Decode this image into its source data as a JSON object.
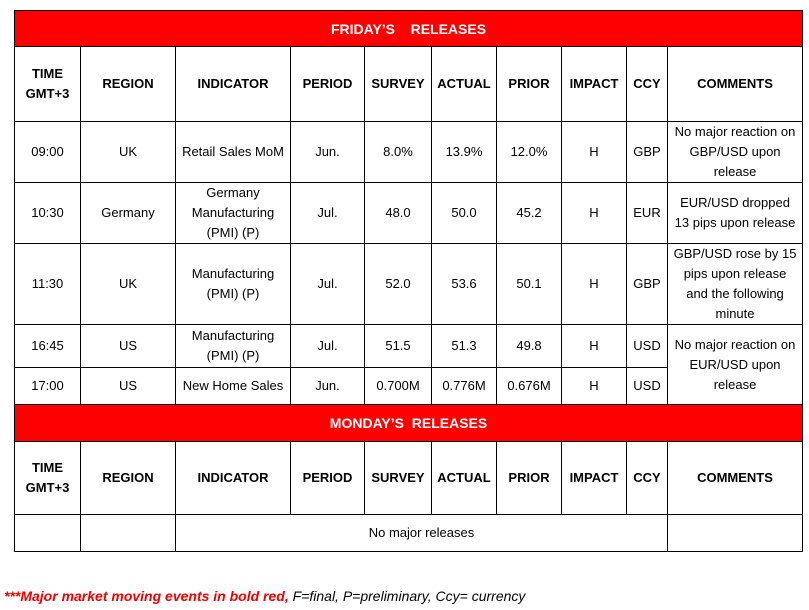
{
  "friday": {
    "title": "FRIDAY’S    RELEASES",
    "columns": [
      "TIME GMT+3",
      "REGION",
      "INDICATOR",
      "PERIOD",
      "SURVEY",
      "ACTUAL",
      "PRIOR",
      "IMPACT",
      "CCY",
      "COMMENTS"
    ],
    "rows": [
      [
        "09:00",
        "UK",
        "Retail Sales MoM",
        "Jun.",
        "8.0%",
        "13.9%",
        "12.0%",
        "H",
        "GBP",
        "No major reaction on GBP/USD upon release"
      ],
      [
        "10:30",
        "Germany",
        "Germany Manufacturing (PMI) (P)",
        "Jul.",
        "48.0",
        "50.0",
        "45.2",
        "H",
        "EUR",
        "EUR/USD dropped 13 pips upon release"
      ],
      [
        "11:30",
        "UK",
        "Manufacturing (PMI) (P)",
        "Jul.",
        "52.0",
        "53.6",
        "50.1",
        "H",
        "GBP",
        "GBP/USD rose by 15 pips upon release and the following minute"
      ],
      [
        "16:45",
        "US",
        "Manufacturing (PMI) (P)",
        "Jul.",
        "51.5",
        "51.3",
        "49.8",
        "H",
        "USD",
        "No major reaction on EUR/USD upon release"
      ],
      [
        "17:00",
        "US",
        "New Home Sales",
        "Jun.",
        "0.700M",
        "0.776M",
        "0.676M",
        "H",
        "USD"
      ]
    ]
  },
  "monday": {
    "title": "MONDAY’S  RELEASES",
    "columns": [
      "TIME GMT+3",
      "REGION",
      "INDICATOR",
      "PERIOD",
      "SURVEY",
      "ACTUAL",
      "PRIOR",
      "IMPACT",
      "CCY",
      "COMMENTS"
    ],
    "note": "No major releases"
  },
  "footnote": {
    "emphasis": "***Major market moving events in bold red,",
    "text": " F=final, P=preliminary, Ccy= currency"
  }
}
